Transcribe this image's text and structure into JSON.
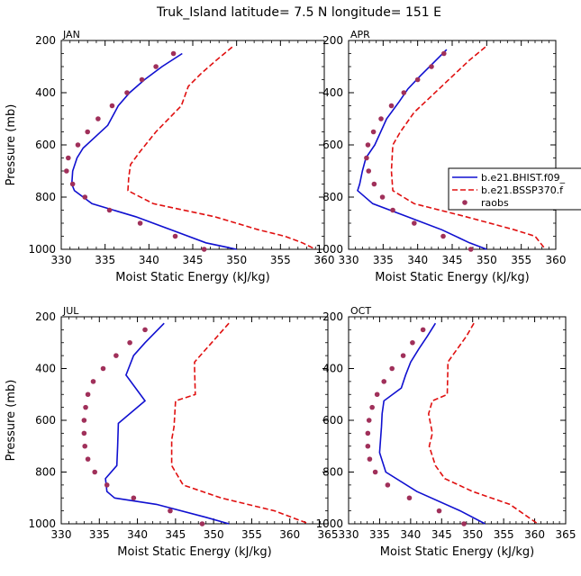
{
  "title": "Truk_Island  latitude= 7.5 N longitude= 151 E",
  "legend": [
    {
      "label": "b.e21.BHIST.f09_",
      "style": "solid",
      "color": "#1010d0"
    },
    {
      "label": "b.e21.BSSP370.f",
      "style": "dashed",
      "color": "#e01010"
    },
    {
      "label": "raobs",
      "style": "dots",
      "color": "#a0305a"
    }
  ],
  "chart_data": [
    {
      "type": "line",
      "panel": "JAN",
      "xlabel": "Moist Static Energy (kJ/kg)",
      "ylabel": "Pressure (mb)",
      "xlim": [
        330,
        360
      ],
      "ylim": [
        200,
        1000
      ],
      "xticks": [
        330,
        335,
        340,
        345,
        350,
        355,
        360
      ],
      "yticks": [
        200,
        400,
        600,
        800,
        1000
      ],
      "series": [
        {
          "name": "b.e21.BHIST.f09_",
          "x": [
            343.8,
            341.5,
            339.5,
            337.8,
            336.5,
            335.3,
            332.5,
            331.8,
            331.3,
            331.2,
            331.5,
            333.5,
            338.5,
            342.5,
            346.5,
            350.0
          ],
          "y": [
            250,
            300,
            350,
            400,
            450,
            525,
            612,
            650,
            700,
            750,
            775,
            825,
            875,
            925,
            975,
            1000
          ]
        },
        {
          "name": "b.e21.BSSP370.f",
          "x": [
            349.5,
            347.7,
            346.0,
            344.5,
            343.7,
            340.8,
            339.0,
            337.9,
            337.7,
            337.6,
            340.5,
            347.5,
            352.5,
            355.5,
            357.5,
            359.0
          ],
          "y": [
            225,
            275,
            325,
            375,
            450,
            550,
            625,
            675,
            725,
            775,
            825,
            875,
            925,
            950,
            975,
            1000
          ]
        },
        {
          "name": "raobs",
          "x": [
            342.8,
            340.8,
            339.2,
            337.5,
            335.8,
            334.2,
            333.0,
            331.9,
            330.8,
            330.6,
            331.3,
            332.7,
            335.5,
            339.0,
            343.0,
            346.3
          ],
          "y": [
            250,
            300,
            350,
            400,
            450,
            500,
            550,
            600,
            650,
            700,
            750,
            800,
            850,
            900,
            950,
            1000
          ]
        }
      ]
    },
    {
      "type": "line",
      "panel": "APR",
      "xlabel": "Moist Static Energy (kJ/kg)",
      "ylabel": "",
      "xlim": [
        330,
        360
      ],
      "ylim": [
        200,
        1000
      ],
      "xticks": [
        330,
        335,
        340,
        345,
        350,
        355,
        360
      ],
      "yticks": [
        200,
        400,
        600,
        800,
        1000
      ],
      "series": [
        {
          "name": "b.e21.BHIST.f09_",
          "x": [
            344.2,
            342.3,
            340.4,
            338.6,
            337.3,
            335.5,
            333.8,
            332.5,
            332.0,
            331.8,
            331.6,
            331.3,
            333.5,
            338.5,
            343.5,
            347.5,
            350.0
          ],
          "y": [
            235,
            285,
            335,
            385,
            435,
            500,
            600,
            650,
            700,
            725,
            750,
            775,
            825,
            875,
            925,
            975,
            1000
          ]
        },
        {
          "name": "b.e21.BSSP370.f",
          "x": [
            349.8,
            347.5,
            345.5,
            343.5,
            341.5,
            339.5,
            337.5,
            336.4,
            336.3,
            336.2,
            336.4,
            339.5,
            347.0,
            354.0,
            357.0,
            358.5
          ],
          "y": [
            225,
            275,
            325,
            375,
            425,
            475,
            550,
            600,
            650,
            700,
            775,
            825,
            875,
            925,
            950,
            1000
          ]
        },
        {
          "name": "raobs",
          "x": [
            343.8,
            342.0,
            340.0,
            338.0,
            336.2,
            334.7,
            333.6,
            332.8,
            332.6,
            332.9,
            333.7,
            334.9,
            336.4,
            339.5,
            343.7,
            347.7
          ],
          "y": [
            250,
            300,
            350,
            400,
            450,
            500,
            550,
            600,
            650,
            700,
            750,
            800,
            850,
            900,
            950,
            1000
          ]
        }
      ]
    },
    {
      "type": "line",
      "panel": "JUL",
      "xlabel": "Moist Static Energy (kJ/kg)",
      "ylabel": "Pressure (mb)",
      "xlim": [
        330,
        365
      ],
      "ylim": [
        200,
        1000
      ],
      "xticks": [
        330,
        335,
        340,
        345,
        350,
        355,
        360,
        365
      ],
      "yticks": [
        200,
        400,
        600,
        800,
        1000
      ],
      "series": [
        {
          "name": "b.e21.BHIST.f09_",
          "x": [
            343.5,
            341.0,
            339.5,
            338.5,
            341.0,
            337.5,
            337.4,
            337.3,
            335.8,
            336.0,
            337.0,
            342.5,
            349.0,
            352.0
          ],
          "y": [
            225,
            300,
            350,
            425,
            525,
            612,
            700,
            775,
            825,
            875,
            900,
            925,
            975,
            1000
          ]
        },
        {
          "name": "b.e21.BSSP370.f",
          "x": [
            352.0,
            350.5,
            349.0,
            347.5,
            347.5,
            347.6,
            345.0,
            344.8,
            344.5,
            344.5,
            346.0,
            351.0,
            358.0,
            362.5
          ],
          "y": [
            225,
            275,
            325,
            375,
            400,
            500,
            525,
            625,
            675,
            775,
            850,
            900,
            950,
            1000
          ]
        },
        {
          "name": "raobs",
          "x": [
            341.0,
            339.0,
            337.2,
            335.5,
            334.2,
            333.5,
            333.2,
            333.0,
            333.0,
            333.1,
            333.5,
            334.4,
            336.0,
            339.5,
            344.3,
            348.5
          ],
          "y": [
            250,
            300,
            350,
            400,
            450,
            500,
            550,
            600,
            650,
            700,
            750,
            800,
            850,
            900,
            950,
            1000
          ]
        }
      ]
    },
    {
      "type": "line",
      "panel": "OCT",
      "xlabel": "Moist Static Energy (kJ/kg)",
      "ylabel": "",
      "xlim": [
        330,
        365
      ],
      "ylim": [
        200,
        1000
      ],
      "xticks": [
        330,
        335,
        340,
        345,
        350,
        355,
        360,
        365
      ],
      "yticks": [
        200,
        400,
        600,
        800,
        1000
      ],
      "series": [
        {
          "name": "b.e21.BHIST.f09_",
          "x": [
            344.0,
            342.7,
            341.3,
            340.0,
            339.2,
            338.5,
            335.7,
            335.4,
            335.3,
            335.0,
            336.0,
            341.0,
            348.0,
            352.0
          ],
          "y": [
            225,
            275,
            325,
            375,
            425,
            475,
            525,
            575,
            625,
            725,
            800,
            875,
            950,
            1000
          ]
        },
        {
          "name": "b.e21.BSSP370.f",
          "x": [
            350.2,
            349.0,
            347.5,
            346.0,
            346.0,
            345.9,
            343.5,
            342.9,
            343.5,
            343.0,
            344.0,
            345.5,
            350.0,
            356.0,
            360.5
          ],
          "y": [
            225,
            275,
            325,
            375,
            400,
            500,
            525,
            575,
            650,
            700,
            775,
            825,
            875,
            925,
            1000
          ]
        },
        {
          "name": "raobs",
          "x": [
            342.0,
            340.3,
            338.8,
            337.0,
            335.7,
            334.6,
            333.8,
            333.3,
            333.1,
            333.1,
            333.4,
            334.3,
            336.3,
            339.8,
            344.6,
            348.6
          ],
          "y": [
            250,
            300,
            350,
            400,
            450,
            500,
            550,
            600,
            650,
            700,
            750,
            800,
            850,
            900,
            950,
            1000
          ]
        }
      ]
    }
  ]
}
